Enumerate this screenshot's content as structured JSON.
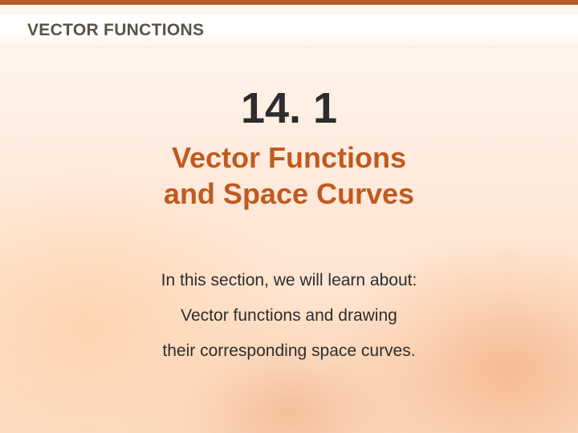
{
  "colors": {
    "header_text": "#5b5245",
    "accent": "#c05a1e",
    "body_text": "#2d2d2d",
    "top_bar": "#b85a24"
  },
  "header": {
    "chapter_title": "VECTOR FUNCTIONS"
  },
  "main": {
    "section_number": "14. 1",
    "section_title_line1": "Vector Functions",
    "section_title_line2": "and Space Curves",
    "intro_line1": "In this section, we will learn about:",
    "intro_line2": "Vector functions and drawing",
    "intro_line3": "their corresponding space curves."
  }
}
